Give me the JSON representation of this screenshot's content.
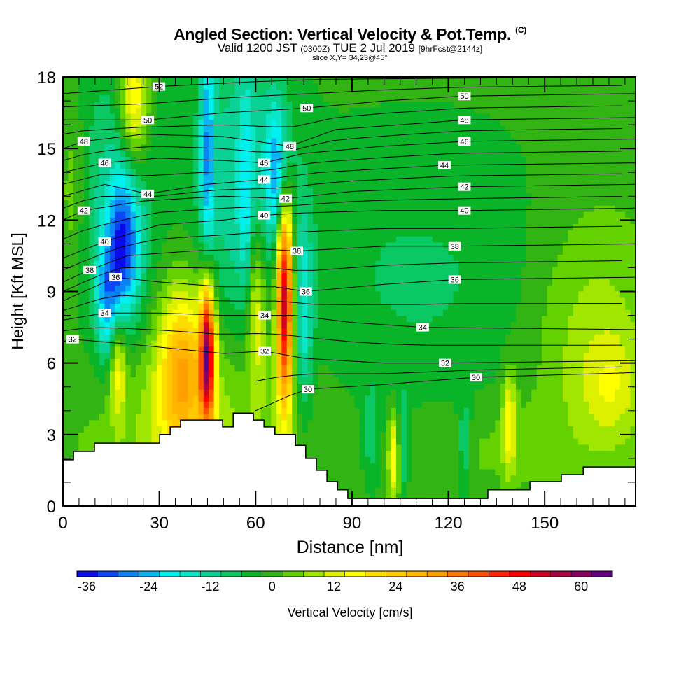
{
  "chart_data": {
    "type": "heatmap",
    "title": "Angled Section: Vertical Velocity & Pot.Temp.",
    "title_mark": "(C)",
    "subtitle_main": "Valid 1200 JST",
    "subtitle_utc": "(0300Z)",
    "subtitle_date": "TUE 2 Jul 2019",
    "subtitle_fcst": "[9hrFcst@2144z]",
    "slice_label": "slice X,Y= 34,23@45°",
    "xlabel": "Distance [nm]",
    "ylabel": "Height [Kft MSL]",
    "xlim": [
      0,
      178.3
    ],
    "ylim": [
      0,
      18
    ],
    "xticks": [
      "0",
      "30",
      "60",
      "90",
      "120",
      "150"
    ],
    "xtick_values": [
      0,
      30,
      60,
      90,
      120,
      150
    ],
    "yticks": [
      "0",
      "3",
      "6",
      "9",
      "12",
      "15",
      "18"
    ],
    "ytick_values": [
      0,
      3,
      6,
      9,
      12,
      15,
      18
    ],
    "colorbar": {
      "label": "Vertical Velocity [cm/s]",
      "min": -36,
      "step": 4,
      "tick_labels": [
        "-36",
        "-24",
        "-12",
        "0",
        "12",
        "24",
        "36",
        "48",
        "60"
      ],
      "colors": [
        "#0a0aeb",
        "#0a46f5",
        "#0a82f5",
        "#0ab4f5",
        "#00f0f0",
        "#0ae6c8",
        "#0ad296",
        "#0ac864",
        "#0ab428",
        "#32b414",
        "#64d200",
        "#a0e600",
        "#dcf000",
        "#ffff00",
        "#ffdc00",
        "#ffc800",
        "#ffb400",
        "#ffa000",
        "#ff7800",
        "#ff5000",
        "#ff2800",
        "#ff0000",
        "#d20028",
        "#aa0046",
        "#8c0064",
        "#640082"
      ]
    },
    "vertical_velocity_features": [
      {
        "x": 110,
        "y": 9.5,
        "sx": 35,
        "sy": 4.5,
        "v": -6
      },
      {
        "x": 40,
        "y": 3.5,
        "sx": 25,
        "sy": 3,
        "v": 10
      },
      {
        "x": 165,
        "y": 7,
        "sx": 14,
        "sy": 4,
        "v": 10
      },
      {
        "x": 171,
        "y": 5,
        "sx": 6,
        "sy": 1.5,
        "v": 8
      },
      {
        "x": 130,
        "y": 2.5,
        "sx": 20,
        "sy": 1.5,
        "v": 4
      },
      {
        "x": 15,
        "y": 12,
        "sx": 10,
        "sy": 5,
        "v": -10
      },
      {
        "x": 56,
        "y": 14,
        "sx": 10,
        "sy": 5,
        "v": -12
      },
      {
        "x": 3,
        "y": 13,
        "sx": 3,
        "sy": 3,
        "v": 8
      },
      {
        "x": 19,
        "y": 11,
        "sx": 3.5,
        "sy": 2.2,
        "v": -26
      },
      {
        "x": 14,
        "y": 8.5,
        "sx": 2.5,
        "sy": 1.8,
        "v": -18
      },
      {
        "x": 45,
        "y": 15,
        "sx": 1.6,
        "sy": 4,
        "v": -20
      },
      {
        "x": 57,
        "y": 12,
        "sx": 1.5,
        "sy": 4,
        "v": -10
      },
      {
        "x": 67,
        "y": 14,
        "sx": 2.5,
        "sy": 2,
        "v": -22
      },
      {
        "x": 75,
        "y": 8,
        "sx": 2,
        "sy": 3,
        "v": -14
      },
      {
        "x": 22,
        "y": 17,
        "sx": 3,
        "sy": 2,
        "v": 22
      },
      {
        "x": 17,
        "y": 6,
        "sx": 1.8,
        "sy": 1.6,
        "v": 18
      },
      {
        "x": 37,
        "y": 5.8,
        "sx": 5,
        "sy": 2.5,
        "v": 26
      },
      {
        "x": 45,
        "y": 6.5,
        "sx": 1.6,
        "sy": 2.2,
        "v": 56
      },
      {
        "x": 60,
        "y": 8.5,
        "sx": 2.5,
        "sy": 2.5,
        "v": 18
      },
      {
        "x": 69,
        "y": 8.8,
        "sx": 1.8,
        "sy": 3.2,
        "v": 58
      },
      {
        "x": 103,
        "y": 2,
        "sx": 1.2,
        "sy": 1.3,
        "v": 18
      },
      {
        "x": 106,
        "y": 2.5,
        "sx": 1.2,
        "sy": 1.5,
        "v": -10
      },
      {
        "x": 125,
        "y": 2.5,
        "sx": 1.5,
        "sy": 1.5,
        "v": -10
      },
      {
        "x": 139,
        "y": 3.5,
        "sx": 1.5,
        "sy": 1.5,
        "v": 16
      },
      {
        "x": 96,
        "y": 3,
        "sx": 2,
        "sy": 1.5,
        "v": -8
      }
    ],
    "terrain_steps": [
      [
        0,
        1.94
      ],
      [
        3.3,
        2.29
      ],
      [
        9.8,
        2.64
      ],
      [
        30.1,
        3.0
      ],
      [
        33.4,
        3.32
      ],
      [
        36.6,
        3.61
      ],
      [
        49.7,
        3.32
      ],
      [
        53.0,
        3.9
      ],
      [
        59.3,
        3.61
      ],
      [
        62.6,
        3.32
      ],
      [
        66.0,
        3.0
      ],
      [
        72.4,
        2.55
      ],
      [
        75.6,
        2.0
      ],
      [
        78.9,
        1.5
      ],
      [
        82.2,
        1.03
      ],
      [
        85.5,
        0.68
      ],
      [
        88.7,
        0.32
      ],
      [
        132.3,
        0.68
      ],
      [
        145.4,
        1.03
      ],
      [
        155.2,
        1.32
      ],
      [
        162.0,
        1.64
      ]
    ],
    "pot_temp_contours": [
      {
        "level": 30,
        "points": [
          [
            60,
            4.0
          ],
          [
            70,
            4.6
          ],
          [
            76,
            4.9
          ],
          [
            100,
            5.1
          ],
          [
            128,
            5.4
          ],
          [
            178.3,
            5.6
          ]
        ]
      },
      {
        "level": 32,
        "points": [
          [
            0,
            6.9
          ],
          [
            3,
            7.0
          ],
          [
            20,
            6.8
          ],
          [
            35,
            6.6
          ],
          [
            50,
            6.4
          ],
          [
            62.8,
            6.5
          ],
          [
            75,
            6.2
          ],
          [
            100,
            6.0
          ],
          [
            119,
            6.0
          ],
          [
            178.3,
            6.1
          ]
        ]
      },
      {
        "level": 34,
        "points": [
          [
            0,
            7.8
          ],
          [
            13,
            8.1
          ],
          [
            30,
            8.1
          ],
          [
            50,
            8.0
          ],
          [
            62.8,
            8.0
          ],
          [
            72,
            8.0
          ],
          [
            90,
            7.7
          ],
          [
            112,
            7.5
          ],
          [
            178.3,
            7.4
          ]
        ]
      },
      {
        "level": 36,
        "points": [
          [
            0,
            8.6
          ],
          [
            16.4,
            9.6
          ],
          [
            30,
            9.4
          ],
          [
            50,
            9.2
          ],
          [
            66,
            9.2
          ],
          [
            75.6,
            9.0
          ],
          [
            100,
            9.3
          ],
          [
            122,
            9.5
          ],
          [
            178.3,
            9.6
          ]
        ]
      },
      {
        "level": 38,
        "points": [
          [
            0,
            9.4
          ],
          [
            8.3,
            9.9
          ],
          [
            20,
            10.5
          ],
          [
            40,
            10.7
          ],
          [
            60,
            10.8
          ],
          [
            72.8,
            10.7
          ],
          [
            100,
            10.9
          ],
          [
            122,
            10.9
          ],
          [
            178.3,
            11.0
          ]
        ]
      },
      {
        "level": 40,
        "points": [
          [
            0,
            10.4
          ],
          [
            13,
            11.1
          ],
          [
            30,
            11.8
          ],
          [
            50,
            12.0
          ],
          [
            62.6,
            12.2
          ],
          [
            75,
            12.3
          ],
          [
            100,
            12.4
          ],
          [
            125,
            12.4
          ],
          [
            178.3,
            12.5
          ]
        ]
      },
      {
        "level": 42,
        "points": [
          [
            0,
            12.0
          ],
          [
            6.5,
            12.4
          ],
          [
            25,
            12.8
          ],
          [
            50,
            13.0
          ],
          [
            69.3,
            12.9
          ],
          [
            90,
            13.2
          ],
          [
            125,
            13.4
          ],
          [
            178.3,
            13.5
          ]
        ]
      },
      {
        "level": 44,
        "points": [
          [
            0,
            13.0
          ],
          [
            13,
            13.5
          ],
          [
            26.4,
            13.1
          ],
          [
            45,
            13.5
          ],
          [
            62.6,
            13.7
          ],
          [
            80,
            14.0
          ],
          [
            118.8,
            14.3
          ],
          [
            178.3,
            14.4
          ]
        ]
      },
      {
        "level": 46,
        "points": [
          [
            0,
            14.0
          ],
          [
            13,
            14.4
          ],
          [
            30,
            14.6
          ],
          [
            50,
            14.5
          ],
          [
            62.6,
            14.4
          ],
          [
            75,
            14.8
          ],
          [
            100,
            15.1
          ],
          [
            125,
            15.3
          ],
          [
            178.3,
            15.4
          ]
        ]
      },
      {
        "level": 48,
        "points": [
          [
            0,
            15.0
          ],
          [
            6.5,
            15.3
          ],
          [
            25,
            15.6
          ],
          [
            50,
            15.5
          ],
          [
            70.6,
            15.1
          ],
          [
            85,
            15.8
          ],
          [
            125,
            16.2
          ],
          [
            178.3,
            16.3
          ]
        ]
      },
      {
        "level": 50,
        "points": [
          [
            0,
            16.2
          ],
          [
            26.4,
            16.2
          ],
          [
            50,
            16.5
          ],
          [
            75.9,
            16.7
          ],
          [
            100,
            17.0
          ],
          [
            125,
            17.2
          ],
          [
            178.3,
            17.3
          ]
        ]
      },
      {
        "level": 52,
        "points": [
          [
            0,
            17.3
          ],
          [
            29.9,
            17.6
          ],
          [
            60,
            17.8
          ],
          [
            80,
            17.9
          ],
          [
            178.3,
            18.0
          ]
        ]
      }
    ],
    "contour_labels": [
      {
        "text": "52",
        "x": 29.9,
        "y": 17.6
      },
      {
        "text": "50",
        "x": 26.4,
        "y": 16.2
      },
      {
        "text": "50",
        "x": 75.9,
        "y": 16.7
      },
      {
        "text": "50",
        "x": 125,
        "y": 17.2
      },
      {
        "text": "48",
        "x": 6.5,
        "y": 15.3
      },
      {
        "text": "48",
        "x": 70.6,
        "y": 15.1
      },
      {
        "text": "48",
        "x": 125,
        "y": 16.2
      },
      {
        "text": "46",
        "x": 13,
        "y": 14.4
      },
      {
        "text": "46",
        "x": 62.6,
        "y": 14.4
      },
      {
        "text": "46",
        "x": 125,
        "y": 15.3
      },
      {
        "text": "44",
        "x": 26.4,
        "y": 13.1
      },
      {
        "text": "44",
        "x": 62.6,
        "y": 13.7
      },
      {
        "text": "44",
        "x": 118.8,
        "y": 14.3
      },
      {
        "text": "42",
        "x": 6.5,
        "y": 12.4
      },
      {
        "text": "42",
        "x": 69.3,
        "y": 12.9
      },
      {
        "text": "42",
        "x": 125,
        "y": 13.4
      },
      {
        "text": "40",
        "x": 13,
        "y": 11.1
      },
      {
        "text": "40",
        "x": 62.6,
        "y": 12.2
      },
      {
        "text": "40",
        "x": 125,
        "y": 12.4
      },
      {
        "text": "38",
        "x": 8.3,
        "y": 9.9
      },
      {
        "text": "38",
        "x": 72.8,
        "y": 10.7
      },
      {
        "text": "38",
        "x": 122,
        "y": 10.9
      },
      {
        "text": "36",
        "x": 16.4,
        "y": 9.6
      },
      {
        "text": "36",
        "x": 75.6,
        "y": 9.0
      },
      {
        "text": "36",
        "x": 122,
        "y": 9.5
      },
      {
        "text": "34",
        "x": 13,
        "y": 8.1
      },
      {
        "text": "34",
        "x": 62.8,
        "y": 8.0
      },
      {
        "text": "34",
        "x": 112,
        "y": 7.5
      },
      {
        "text": "32",
        "x": 3,
        "y": 7.0
      },
      {
        "text": "32",
        "x": 62.8,
        "y": 6.5
      },
      {
        "text": "32",
        "x": 119,
        "y": 6.0
      },
      {
        "text": "30",
        "x": 76.3,
        "y": 4.9
      },
      {
        "text": "30",
        "x": 128.6,
        "y": 5.4
      }
    ]
  }
}
